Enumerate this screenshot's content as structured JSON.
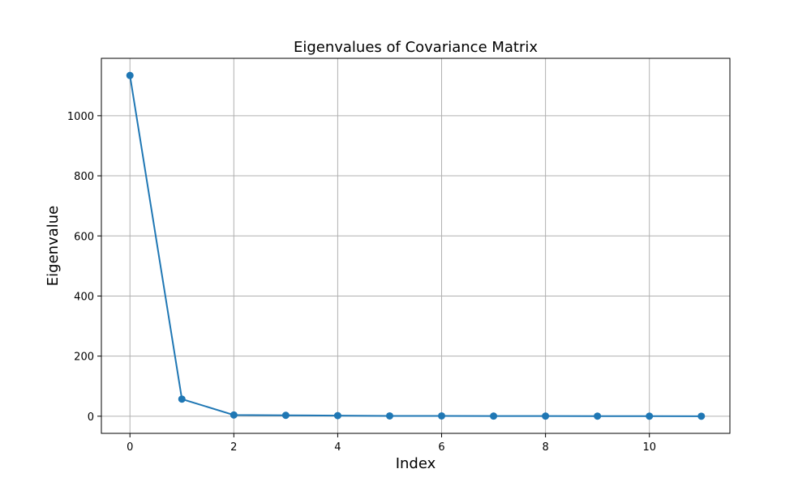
{
  "chart_data": {
    "type": "line",
    "title": "Eigenvalues of Covariance Matrix",
    "xlabel": "Index",
    "ylabel": "Eigenvalue",
    "x": [
      0,
      1,
      2,
      3,
      4,
      5,
      6,
      7,
      8,
      9,
      10,
      11
    ],
    "series": [
      {
        "values": [
          1134,
          57,
          4,
          3,
          2,
          1,
          1,
          0.5,
          0.5,
          0.3,
          0.2,
          0.1
        ],
        "color": "#1f77b4",
        "marker": "circle"
      }
    ],
    "xlim": [
      -0.55,
      11.55
    ],
    "ylim": [
      -57,
      1191
    ],
    "xticks": [
      0,
      2,
      4,
      6,
      8,
      10
    ],
    "yticks": [
      0,
      200,
      400,
      600,
      800,
      1000
    ],
    "grid": true
  }
}
